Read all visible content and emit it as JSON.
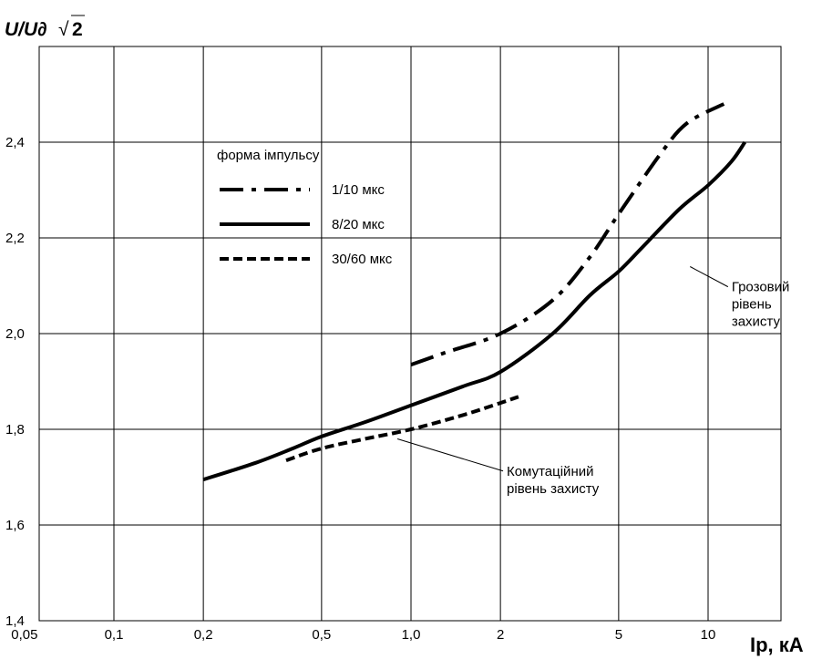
{
  "chart_data": {
    "type": "line",
    "ylabel_text": "U/U∂",
    "ylabel_sqrt": "√",
    "ylabel_radicand": "2",
    "xlabel": "Iр, кА",
    "x_scale": "log",
    "xlim": [
      0.05,
      14
    ],
    "ylim": [
      1.4,
      2.6
    ],
    "grid": true,
    "x_ticks": [
      {
        "value": 0.05,
        "label": "0,05"
      },
      {
        "value": 0.1,
        "label": "0,1"
      },
      {
        "value": 0.2,
        "label": "0,2"
      },
      {
        "value": 0.5,
        "label": "0,5"
      },
      {
        "value": 1.0,
        "label": "1,0"
      },
      {
        "value": 2,
        "label": "2"
      },
      {
        "value": 5,
        "label": "5"
      },
      {
        "value": 10,
        "label": "10"
      }
    ],
    "y_ticks": [
      {
        "value": 1.4,
        "label": "1,4"
      },
      {
        "value": 1.6,
        "label": "1,6"
      },
      {
        "value": 1.8,
        "label": "1,8"
      },
      {
        "value": 2.0,
        "label": "2,0"
      },
      {
        "value": 2.2,
        "label": "2,2"
      },
      {
        "value": 2.4,
        "label": "2,4"
      }
    ],
    "legend": {
      "title": "форма імпульсу",
      "placement": "upper-left",
      "entries": [
        "1/10 мкс",
        "8/20 мкс",
        "30/60 мкс"
      ]
    },
    "series": [
      {
        "name": "1/10 мкс",
        "style": "dash-dot",
        "points": [
          [
            1.0,
            1.935
          ],
          [
            1.3,
            1.96
          ],
          [
            2.0,
            2.0
          ],
          [
            3.0,
            2.07
          ],
          [
            4.0,
            2.16
          ],
          [
            5.0,
            2.25
          ],
          [
            7.0,
            2.38
          ],
          [
            8.5,
            2.44
          ],
          [
            11.3,
            2.48
          ]
        ]
      },
      {
        "name": "8/20 мкс",
        "style": "solid",
        "points": [
          [
            0.2,
            1.695
          ],
          [
            0.3,
            1.73
          ],
          [
            0.4,
            1.76
          ],
          [
            0.5,
            1.785
          ],
          [
            0.7,
            1.815
          ],
          [
            1.0,
            1.85
          ],
          [
            1.5,
            1.89
          ],
          [
            2.0,
            1.92
          ],
          [
            3.0,
            2.0
          ],
          [
            4.0,
            2.08
          ],
          [
            5.0,
            2.13
          ],
          [
            6.0,
            2.18
          ],
          [
            8.0,
            2.26
          ],
          [
            10.0,
            2.31
          ],
          [
            12.0,
            2.36
          ],
          [
            13.3,
            2.4
          ]
        ]
      },
      {
        "name": "30/60 мкс",
        "style": "dashed",
        "points": [
          [
            0.38,
            1.735
          ],
          [
            0.5,
            1.76
          ],
          [
            0.7,
            1.78
          ],
          [
            1.0,
            1.8
          ],
          [
            1.5,
            1.83
          ],
          [
            2.0,
            1.855
          ],
          [
            2.3,
            1.868
          ]
        ]
      }
    ],
    "annotations": [
      {
        "lines": [
          "Грозовий",
          "рівень",
          "захисту"
        ],
        "x": 12.0,
        "y": 2.075,
        "leader_to": [
          8.7,
          2.14
        ]
      },
      {
        "lines": [
          "Комутаційний",
          "рівень захисту"
        ],
        "x": 2.1,
        "y": 1.69,
        "leader_to": [
          0.9,
          1.78
        ]
      }
    ]
  }
}
